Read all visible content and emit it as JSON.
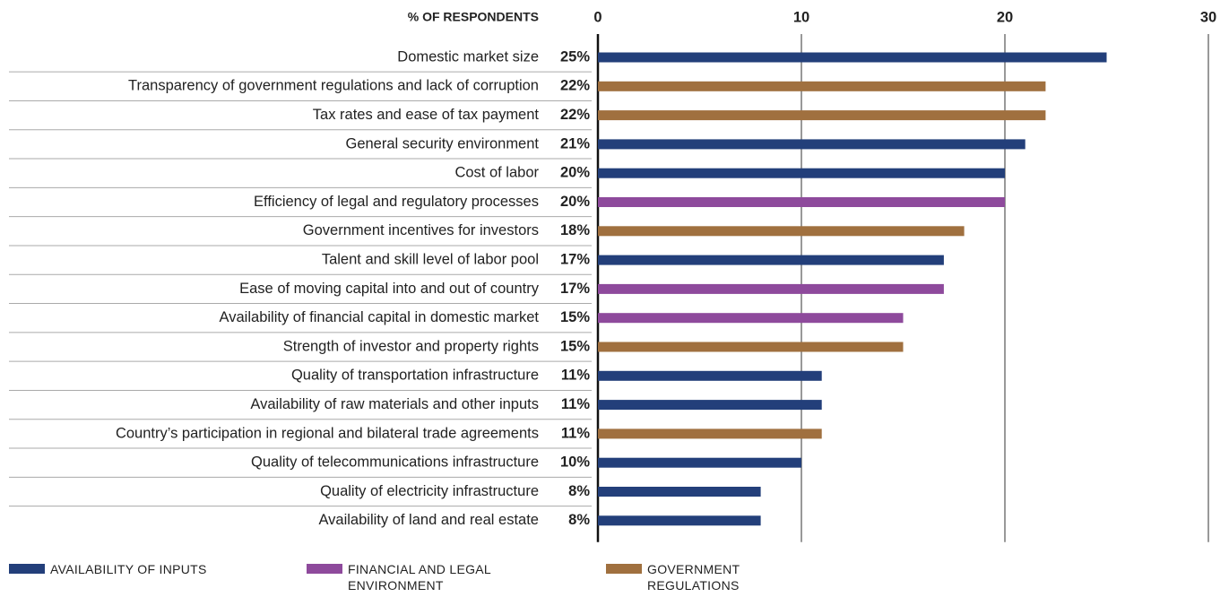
{
  "chart_data": {
    "type": "bar",
    "orientation": "horizontal",
    "axis_label": "% OF RESPONDENTS",
    "categories": [
      "Domestic market size",
      "Transparency of government regulations and lack of corruption",
      "Tax rates and ease of tax payment",
      "General security environment",
      "Cost of labor",
      "Efficiency of legal and regulatory processes",
      "Government incentives for investors",
      "Talent and skill level of labor pool",
      "Ease of moving capital into and out of country",
      "Availability of financial capital in domestic market",
      "Strength of investor and property rights",
      "Quality of transportation infrastructure",
      "Availability of raw materials and other inputs",
      "Country’s participation in regional and bilateral trade agreements",
      "Quality of telecommunications infrastructure",
      "Quality of electricity infrastructure",
      "Availability of land and real estate"
    ],
    "series": [
      {
        "name": "AVAILABILITY OF INPUTS",
        "color": "#233f7a",
        "values": [
          25,
          null,
          null,
          21,
          20,
          null,
          null,
          17,
          null,
          null,
          null,
          11,
          11,
          null,
          10,
          8,
          8
        ],
        "value_labels": [
          "25%",
          null,
          null,
          "21%",
          "20%",
          null,
          null,
          "17%",
          null,
          null,
          null,
          "11%",
          "11%",
          null,
          "10%",
          "8%",
          "8%"
        ]
      },
      {
        "name": "FINANCIAL AND LEGAL ENVIRONMENT",
        "color": "#8e4a9c",
        "values": [
          null,
          null,
          null,
          null,
          null,
          20,
          null,
          null,
          17,
          15,
          null,
          null,
          null,
          null,
          null,
          null,
          null
        ],
        "value_labels": [
          null,
          null,
          null,
          null,
          null,
          "20%",
          null,
          null,
          "17%",
          "15%",
          null,
          null,
          null,
          null,
          null,
          null,
          null
        ]
      },
      {
        "name": "GOVERNMENT REGULATIONS",
        "color": "#a0703f",
        "values": [
          null,
          22,
          22,
          null,
          null,
          null,
          18,
          null,
          null,
          null,
          15,
          null,
          null,
          11,
          null,
          null,
          null
        ],
        "value_labels": [
          null,
          "22%",
          "22%",
          null,
          null,
          null,
          "18%",
          null,
          null,
          null,
          "15%",
          null,
          null,
          "11%",
          null,
          null,
          null
        ]
      }
    ],
    "xlim": [
      0,
      30
    ],
    "xticks": [
      0,
      10,
      20,
      30
    ],
    "grid": true
  }
}
